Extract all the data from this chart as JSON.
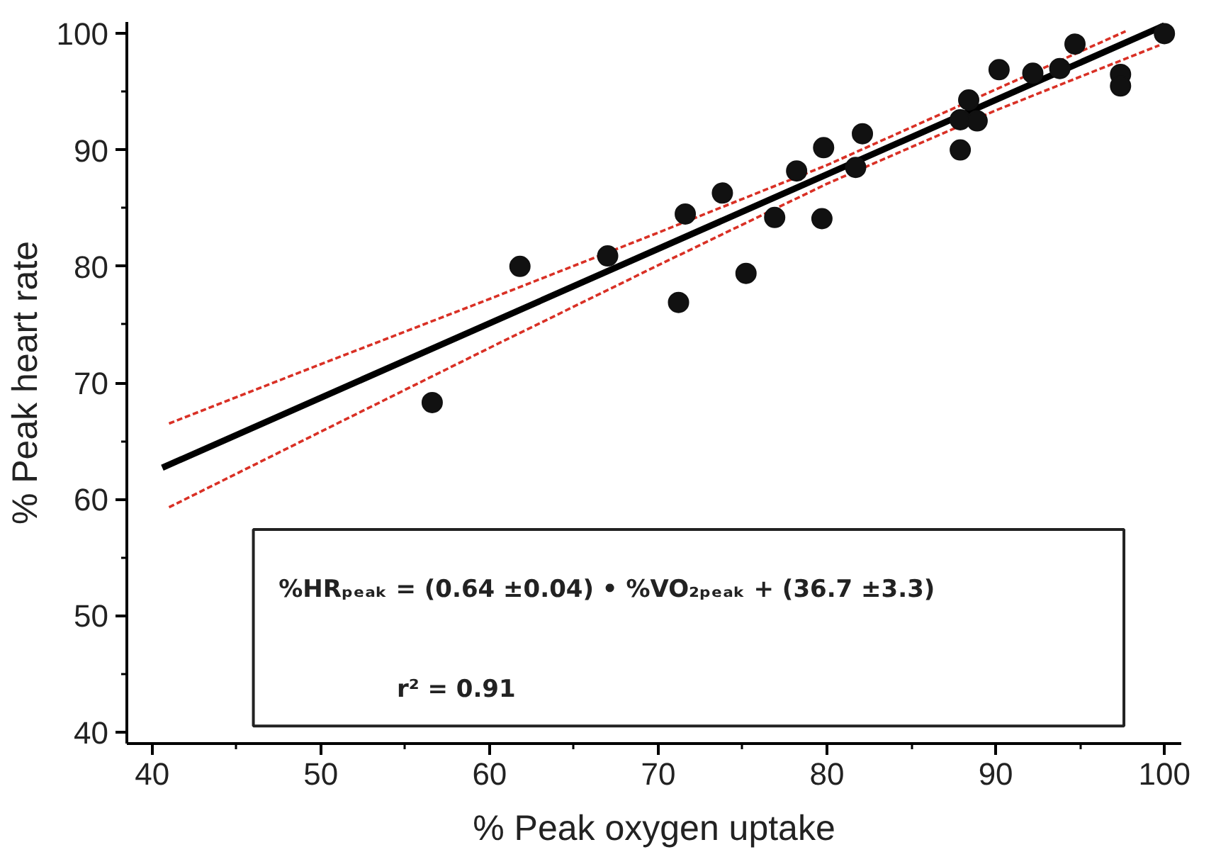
{
  "chart_data": {
    "type": "scatter",
    "xlabel": "% Peak oxygen uptake",
    "ylabel": "% Peak heart rate",
    "xlim": [
      38.5,
      101
    ],
    "ylim": [
      39,
      101
    ],
    "xticks": [
      40,
      {
        "value": 45,
        "label": null
      },
      50,
      {
        "value": 55,
        "label": null
      },
      60,
      {
        "value": 65,
        "label": null
      },
      70,
      {
        "value": 75,
        "label": null
      },
      80,
      {
        "value": 85,
        "label": null
      },
      90,
      {
        "value": 95,
        "label": null
      },
      100
    ],
    "yticks": [
      40,
      {
        "value": 45,
        "label": null
      },
      50,
      {
        "value": 55,
        "label": null
      },
      60,
      {
        "value": 65,
        "label": null
      },
      70,
      {
        "value": 75,
        "label": null
      },
      80,
      {
        "value": 85,
        "label": null
      },
      90,
      {
        "value": 95,
        "label": null
      },
      100
    ],
    "grid": false,
    "series": [
      {
        "color": "#111111",
        "marker": "circle",
        "x": [
          56.6,
          61.8,
          67.0,
          71.2,
          71.6,
          73.8,
          75.2,
          76.9,
          78.2,
          79.7,
          79.8,
          81.7,
          82.1,
          87.9,
          87.9,
          88.4,
          88.9,
          90.2,
          92.2,
          93.8,
          94.7,
          97.4,
          97.4,
          100.0
        ],
        "values": [
          68.3,
          80.0,
          80.9,
          76.9,
          84.5,
          86.3,
          79.4,
          84.2,
          88.2,
          84.1,
          90.2,
          88.5,
          91.4,
          90.0,
          92.6,
          94.3,
          92.5,
          96.9,
          96.6,
          97.0,
          99.1,
          96.5,
          95.5,
          100.0
        ]
      },
      {
        "type": "line",
        "color": "#000000",
        "line_style": "solid",
        "x": [
          40.6,
          100.0
        ],
        "values": [
          62.7,
          100.7
        ]
      },
      {
        "type": "line",
        "color": "#d93025",
        "line_style": "dashed",
        "x": [
          41,
          50,
          60,
          70,
          80,
          90,
          97.7
        ],
        "values": [
          66.5,
          71.6,
          77.2,
          82.9,
          88.7,
          95.2,
          100.2
        ]
      },
      {
        "type": "line",
        "color": "#d93025",
        "line_style": "dashed",
        "x": [
          41,
          50,
          60,
          70,
          80,
          90,
          99.7
        ],
        "values": [
          59.3,
          65.8,
          73.0,
          80.1,
          87.1,
          93.4,
          99.0
        ]
      }
    ],
    "annotations": [
      "%HRₚₑₐₖ = (0.64 ±0.04) • %VO₂ₚₑₐₖ + (36.7 ±3.3)",
      "r² = 0.91"
    ]
  }
}
